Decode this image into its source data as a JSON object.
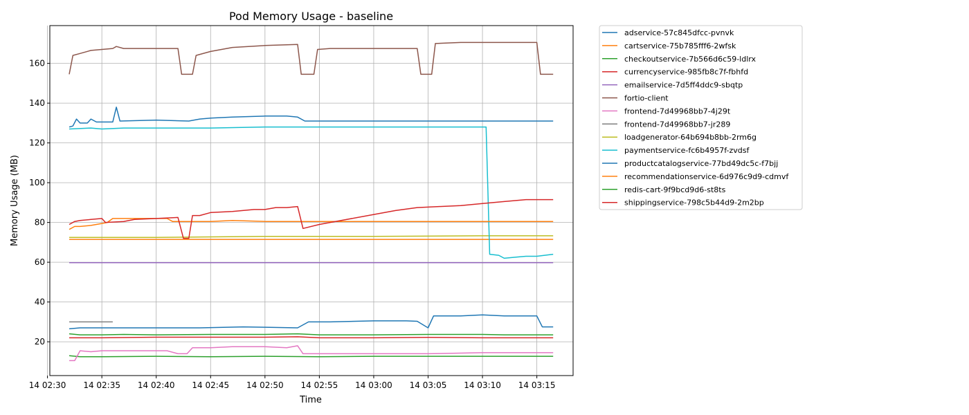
{
  "chart_data": {
    "type": "line",
    "title": "Pod Memory Usage - baseline",
    "xlabel": "Time",
    "ylabel": "Memory Usage (MB)",
    "xlim": [
      "2024-01-14 02:30:13",
      "2024-01-14 03:18:20"
    ],
    "ylim": [
      3,
      179
    ],
    "x_ticks": [
      "14 02:30",
      "14 02:35",
      "14 02:40",
      "14 02:45",
      "14 02:50",
      "14 02:55",
      "14 03:00",
      "14 03:05",
      "14 03:10",
      "14 03:15"
    ],
    "y_ticks": [
      20,
      40,
      60,
      80,
      100,
      120,
      140,
      160
    ],
    "grid": true,
    "legend_position": "outside-right",
    "series": [
      {
        "name": "adservice-57c845dfcc-pvnvk",
        "color": "#1f77b4",
        "points": [
          [
            "02:32",
            26.5
          ],
          [
            "02:33",
            27
          ],
          [
            "02:36",
            27
          ],
          [
            "02:40",
            27
          ],
          [
            "02:44",
            27
          ],
          [
            "02:48",
            27.5
          ],
          [
            "02:50",
            27.3
          ],
          [
            "02:53",
            27
          ],
          [
            "02:54",
            30
          ],
          [
            "02:56",
            30
          ],
          [
            "03:00",
            30.5
          ],
          [
            "03:03",
            30.5
          ],
          [
            "03:04",
            30.3
          ],
          [
            "03:05",
            27
          ],
          [
            "03:05:30",
            33
          ],
          [
            "03:08",
            33
          ],
          [
            "03:10",
            33.5
          ],
          [
            "03:12",
            33
          ],
          [
            "03:15",
            33
          ],
          [
            "03:15:30",
            27.5
          ],
          [
            "03:16:30",
            27.5
          ]
        ]
      },
      {
        "name": "cartservice-75b785fff6-2wfsk",
        "color": "#ff7f0e",
        "points": [
          [
            "02:32",
            71.5
          ],
          [
            "02:35",
            71.5
          ],
          [
            "02:40",
            71.5
          ],
          [
            "02:45",
            71.5
          ],
          [
            "02:50",
            71.5
          ],
          [
            "02:55",
            71.5
          ],
          [
            "03:00",
            71.5
          ],
          [
            "03:05",
            71.5
          ],
          [
            "03:10",
            71.5
          ],
          [
            "03:15",
            71.5
          ],
          [
            "03:16:30",
            71.5
          ]
        ]
      },
      {
        "name": "checkoutservice-7b566d6c59-ldlrx",
        "color": "#2ca02c",
        "points": [
          [
            "02:32",
            13
          ],
          [
            "02:33",
            12.5
          ],
          [
            "02:35",
            12.5
          ],
          [
            "02:40",
            12.7
          ],
          [
            "02:45",
            12.5
          ],
          [
            "02:50",
            12.7
          ],
          [
            "02:55",
            12.5
          ],
          [
            "03:00",
            12.7
          ],
          [
            "03:05",
            12.7
          ],
          [
            "03:10",
            12.7
          ],
          [
            "03:15",
            12.7
          ],
          [
            "03:16:30",
            12.7
          ]
        ]
      },
      {
        "name": "currencyservice-985fb8c7f-fbhfd",
        "color": "#d62728",
        "points": [
          [
            "02:32",
            22
          ],
          [
            "02:35",
            22
          ],
          [
            "02:40",
            22.3
          ],
          [
            "02:45",
            22.3
          ],
          [
            "02:50",
            22.3
          ],
          [
            "02:53",
            22.5
          ],
          [
            "02:55",
            22
          ],
          [
            "03:00",
            22
          ],
          [
            "03:05",
            22.2
          ],
          [
            "03:10",
            22
          ],
          [
            "03:15",
            22
          ],
          [
            "03:16:30",
            22
          ]
        ]
      },
      {
        "name": "emailservice-7d5ff4ddc9-sbqtp",
        "color": "#9467bd",
        "points": [
          [
            "02:32",
            59.8
          ],
          [
            "02:40",
            59.8
          ],
          [
            "02:50",
            59.8
          ],
          [
            "03:00",
            59.8
          ],
          [
            "03:10",
            59.8
          ],
          [
            "03:16:30",
            59.8
          ]
        ]
      },
      {
        "name": "fortio-client",
        "color": "#8c564b",
        "points": [
          [
            "02:32",
            154.5
          ],
          [
            "02:32:20",
            164
          ],
          [
            "02:33",
            165
          ],
          [
            "02:34",
            166.5
          ],
          [
            "02:35",
            167
          ],
          [
            "02:36",
            167.5
          ],
          [
            "02:36:20",
            168.5
          ],
          [
            "02:37",
            167.5
          ],
          [
            "02:39",
            167.5
          ],
          [
            "02:40",
            167.5
          ],
          [
            "02:40:30",
            167.5
          ],
          [
            "02:42",
            167.5
          ],
          [
            "02:42:20",
            154.5
          ],
          [
            "02:43:20",
            154.5
          ],
          [
            "02:43:40",
            164
          ],
          [
            "02:45",
            166
          ],
          [
            "02:47",
            168
          ],
          [
            "02:50",
            169
          ],
          [
            "02:53",
            169.5
          ],
          [
            "02:53:20",
            154.5
          ],
          [
            "02:54:30",
            154.5
          ],
          [
            "02:54:50",
            167
          ],
          [
            "02:56",
            167.5
          ],
          [
            "03:00",
            167.5
          ],
          [
            "03:04",
            167.5
          ],
          [
            "03:04:20",
            154.5
          ],
          [
            "03:05:20",
            154.5
          ],
          [
            "03:05:40",
            170
          ],
          [
            "03:08",
            170.5
          ],
          [
            "03:10",
            170.5
          ],
          [
            "03:11",
            170.5
          ],
          [
            "03:15",
            170.5
          ],
          [
            "03:15:20",
            154.5
          ],
          [
            "03:16:30",
            154.5
          ]
        ]
      },
      {
        "name": "frontend-7d49968bb7-4j29t",
        "color": "#e377c2",
        "points": [
          [
            "02:32",
            10.5
          ],
          [
            "02:32:30",
            10.5
          ],
          [
            "02:33",
            15.5
          ],
          [
            "02:34",
            15
          ],
          [
            "02:35",
            15.5
          ],
          [
            "02:37",
            15.5
          ],
          [
            "02:40",
            15.5
          ],
          [
            "02:41",
            15.5
          ],
          [
            "02:42",
            14
          ],
          [
            "02:42:50",
            14
          ],
          [
            "02:43:20",
            17
          ],
          [
            "02:45",
            17
          ],
          [
            "02:47",
            17.5
          ],
          [
            "02:50",
            17.5
          ],
          [
            "02:52",
            17
          ],
          [
            "02:53",
            18
          ],
          [
            "02:53:30",
            14
          ],
          [
            "02:55",
            14
          ],
          [
            "03:00",
            14
          ],
          [
            "03:05",
            14
          ],
          [
            "03:10",
            14.5
          ],
          [
            "03:15",
            14.5
          ],
          [
            "03:16:30",
            14.5
          ]
        ]
      },
      {
        "name": "frontend-7d49968bb7-jr289",
        "color": "#7f7f7f",
        "points": [
          [
            "02:32",
            30
          ],
          [
            "02:33",
            30
          ],
          [
            "02:34",
            30
          ],
          [
            "02:35",
            30
          ],
          [
            "02:36",
            30
          ]
        ]
      },
      {
        "name": "loadgenerator-64b694b8bb-2rm6g",
        "color": "#bcbd22",
        "points": [
          [
            "02:32",
            72.5
          ],
          [
            "02:40",
            72.5
          ],
          [
            "02:50",
            73
          ],
          [
            "03:00",
            73
          ],
          [
            "03:10",
            73.3
          ],
          [
            "03:16:30",
            73.3
          ]
        ]
      },
      {
        "name": "paymentservice-fc6b4957f-zvdsf",
        "color": "#17becf",
        "points": [
          [
            "02:32",
            127
          ],
          [
            "02:34",
            127.5
          ],
          [
            "02:35",
            127
          ],
          [
            "02:37",
            127.5
          ],
          [
            "02:40",
            127.5
          ],
          [
            "02:45",
            127.5
          ],
          [
            "02:50",
            128
          ],
          [
            "02:55",
            128
          ],
          [
            "03:00",
            128
          ],
          [
            "03:05",
            128
          ],
          [
            "03:10",
            128
          ],
          [
            "03:10:20",
            128
          ],
          [
            "03:10:40",
            64
          ],
          [
            "03:11:30",
            63.5
          ],
          [
            "03:12",
            62
          ],
          [
            "03:13",
            62.5
          ],
          [
            "03:14",
            63
          ],
          [
            "03:15",
            63
          ],
          [
            "03:16:30",
            64
          ]
        ]
      },
      {
        "name": "productcatalogservice-77bd49dc5c-f7bjj",
        "color": "#1f77b4",
        "points": [
          [
            "02:32",
            128
          ],
          [
            "02:32:20",
            128.5
          ],
          [
            "02:32:40",
            132
          ],
          [
            "02:33",
            130
          ],
          [
            "02:33:40",
            130
          ],
          [
            "02:34",
            132
          ],
          [
            "02:34:30",
            130.5
          ],
          [
            "02:35",
            130.5
          ],
          [
            "02:36",
            130.5
          ],
          [
            "02:36:20",
            138
          ],
          [
            "02:36:40",
            131
          ],
          [
            "02:40",
            131.5
          ],
          [
            "02:43",
            131
          ],
          [
            "02:44",
            132
          ],
          [
            "02:45",
            132.5
          ],
          [
            "02:47",
            133
          ],
          [
            "02:50",
            133.5
          ],
          [
            "02:52",
            133.5
          ],
          [
            "02:53",
            133
          ],
          [
            "02:53:40",
            131
          ],
          [
            "03:00",
            131
          ],
          [
            "03:05",
            131
          ],
          [
            "03:10",
            131
          ],
          [
            "03:16:30",
            131
          ]
        ]
      },
      {
        "name": "recommendationservice-6d976c9d9-cdmvf",
        "color": "#ff7f0e",
        "points": [
          [
            "02:32",
            76.5
          ],
          [
            "02:32:30",
            78
          ],
          [
            "02:33",
            78
          ],
          [
            "02:34",
            78.5
          ],
          [
            "02:35",
            79.5
          ],
          [
            "02:35:30",
            80
          ],
          [
            "02:36",
            82
          ],
          [
            "02:40",
            82
          ],
          [
            "02:41",
            82
          ],
          [
            "02:41:30",
            80.5
          ],
          [
            "02:45",
            80.5
          ],
          [
            "02:47",
            81
          ],
          [
            "02:50",
            80.5
          ],
          [
            "03:00",
            80.5
          ],
          [
            "03:10",
            80.5
          ],
          [
            "03:16:30",
            80.5
          ]
        ]
      },
      {
        "name": "redis-cart-9f9bcd9d6-st8ts",
        "color": "#2ca02c",
        "points": [
          [
            "02:32",
            24
          ],
          [
            "02:33",
            23.5
          ],
          [
            "02:35",
            23.5
          ],
          [
            "02:37",
            23.7
          ],
          [
            "02:40",
            23.5
          ],
          [
            "02:45",
            23.7
          ],
          [
            "02:50",
            23.7
          ],
          [
            "02:53",
            24
          ],
          [
            "02:55",
            23.5
          ],
          [
            "03:00",
            23.5
          ],
          [
            "03:05",
            23.7
          ],
          [
            "03:10",
            23.7
          ],
          [
            "03:12",
            23.5
          ],
          [
            "03:15",
            23.5
          ],
          [
            "03:16:30",
            23.5
          ]
        ]
      },
      {
        "name": "shippingservice-798c5b44d9-2m2bp",
        "color": "#d62728",
        "points": [
          [
            "02:32",
            79
          ],
          [
            "02:32:30",
            80.5
          ],
          [
            "02:33",
            81
          ],
          [
            "02:34",
            81.5
          ],
          [
            "02:35",
            82
          ],
          [
            "02:35:20",
            80
          ],
          [
            "02:37",
            80.5
          ],
          [
            "02:38",
            81.5
          ],
          [
            "02:40",
            82
          ],
          [
            "02:42",
            82.5
          ],
          [
            "02:42:30",
            72
          ],
          [
            "02:43",
            72
          ],
          [
            "02:43:20",
            83.5
          ],
          [
            "02:44",
            83.5
          ],
          [
            "02:45",
            85
          ],
          [
            "02:47",
            85.5
          ],
          [
            "02:49",
            86.5
          ],
          [
            "02:50",
            86.5
          ],
          [
            "02:51",
            87.5
          ],
          [
            "02:52",
            87.5
          ],
          [
            "02:53",
            88
          ],
          [
            "02:53:30",
            77
          ],
          [
            "02:55",
            79
          ],
          [
            "02:57",
            81
          ],
          [
            "03:00",
            84
          ],
          [
            "03:02",
            86
          ],
          [
            "03:04",
            87.5
          ],
          [
            "03:06",
            88
          ],
          [
            "03:08",
            88.5
          ],
          [
            "03:10",
            89.5
          ],
          [
            "03:12",
            90.5
          ],
          [
            "03:14",
            91.5
          ],
          [
            "03:16:30",
            91.5
          ]
        ]
      }
    ]
  }
}
